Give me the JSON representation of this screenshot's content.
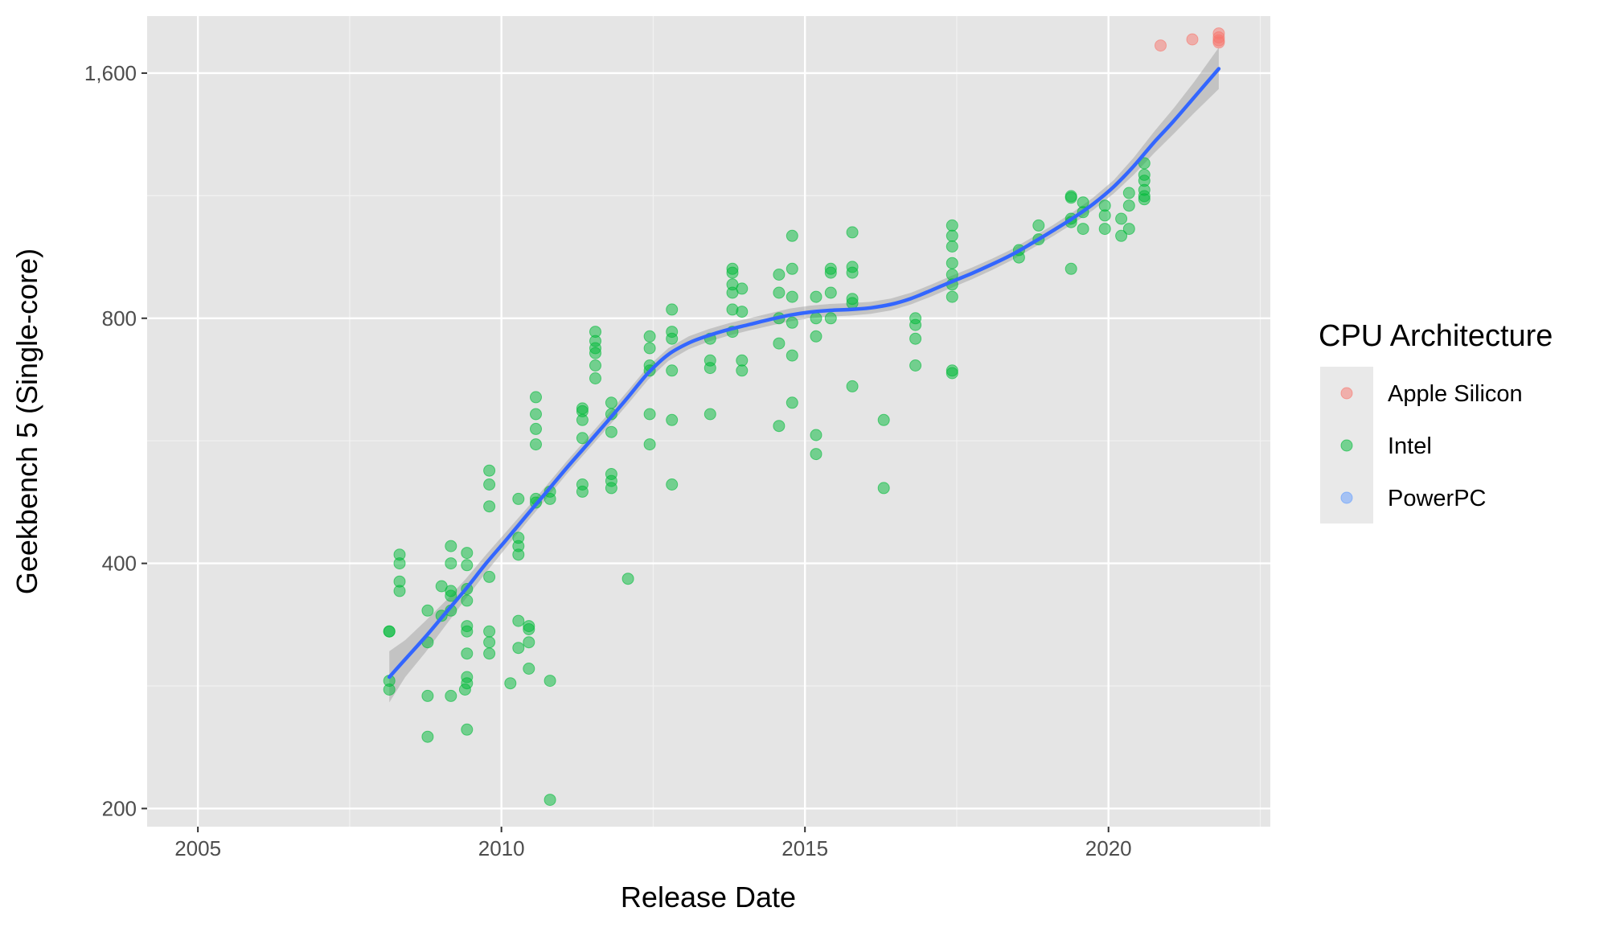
{
  "chart_data": {
    "type": "scatter",
    "title": "",
    "xlabel": "Release Date",
    "ylabel": "Geekbench 5 (Single-core)",
    "x_scale": "date",
    "y_scale": "log2",
    "xlim": [
      "2004-03-01",
      "2022-09-01"
    ],
    "ylim": [
      190,
      1880
    ],
    "x_ticks": [
      {
        "value": "2005-01-01",
        "label": "2005"
      },
      {
        "value": "2010-01-01",
        "label": "2010"
      },
      {
        "value": "2015-01-01",
        "label": "2015"
      },
      {
        "value": "2020-01-01",
        "label": "2020"
      }
    ],
    "y_ticks": [
      {
        "value": 200,
        "label": "200"
      },
      {
        "value": 400,
        "label": "400"
      },
      {
        "value": 800,
        "label": "800"
      },
      {
        "value": 1600,
        "label": "1,600"
      }
    ],
    "grid": true,
    "background": "#e5e5e5",
    "legend": {
      "title": "CPU Architecture",
      "position": "right",
      "entries": [
        {
          "name": "Apple Silicon",
          "color": "#f8766d"
        },
        {
          "name": "Intel",
          "color": "#00ba38"
        },
        {
          "name": "PowerPC",
          "color": "#619cff"
        }
      ]
    },
    "series": [
      {
        "name": "Apple Silicon",
        "color": "#f8766d",
        "points": [
          [
            "2020-11-10",
            1730
          ],
          [
            "2021-05-20",
            1760
          ],
          [
            "2021-10-26",
            1790
          ],
          [
            "2021-10-26",
            1770
          ],
          [
            "2021-10-26",
            1755
          ],
          [
            "2021-10-26",
            1745
          ]
        ]
      },
      {
        "name": "Intel",
        "color": "#00ba38",
        "points": [
          [
            "2008-02-26",
            330
          ],
          [
            "2008-02-26",
            330
          ],
          [
            "2008-02-26",
            287
          ],
          [
            "2008-02-26",
            280
          ],
          [
            "2008-04-28",
            410
          ],
          [
            "2008-04-28",
            400
          ],
          [
            "2008-04-28",
            380
          ],
          [
            "2008-04-28",
            370
          ],
          [
            "2008-10-14",
            350
          ],
          [
            "2008-10-14",
            320
          ],
          [
            "2008-10-14",
            275
          ],
          [
            "2008-10-14",
            245
          ],
          [
            "2009-01-06",
            375
          ],
          [
            "2009-01-06",
            345
          ],
          [
            "2009-03-03",
            420
          ],
          [
            "2009-03-03",
            400
          ],
          [
            "2009-03-03",
            370
          ],
          [
            "2009-03-03",
            365
          ],
          [
            "2009-03-03",
            350
          ],
          [
            "2009-03-03",
            275
          ],
          [
            "2009-05-27",
            280
          ],
          [
            "2009-06-08",
            412
          ],
          [
            "2009-06-08",
            398
          ],
          [
            "2009-06-08",
            372
          ],
          [
            "2009-06-08",
            360
          ],
          [
            "2009-06-08",
            335
          ],
          [
            "2009-06-08",
            330
          ],
          [
            "2009-06-08",
            310
          ],
          [
            "2009-06-08",
            290
          ],
          [
            "2009-06-08",
            285
          ],
          [
            "2009-06-08",
            250
          ],
          [
            "2009-10-20",
            520
          ],
          [
            "2009-10-20",
            500
          ],
          [
            "2009-10-20",
            470
          ],
          [
            "2009-10-20",
            385
          ],
          [
            "2009-10-20",
            330
          ],
          [
            "2009-10-20",
            320
          ],
          [
            "2009-10-20",
            310
          ],
          [
            "2010-02-24",
            285
          ],
          [
            "2010-04-13",
            480
          ],
          [
            "2010-04-13",
            430
          ],
          [
            "2010-04-13",
            420
          ],
          [
            "2010-04-13",
            410
          ],
          [
            "2010-04-13",
            340
          ],
          [
            "2010-04-13",
            315
          ],
          [
            "2010-06-15",
            335
          ],
          [
            "2010-06-15",
            332
          ],
          [
            "2010-06-15",
            320
          ],
          [
            "2010-06-15",
            297
          ],
          [
            "2010-07-27",
            640
          ],
          [
            "2010-07-27",
            610
          ],
          [
            "2010-07-27",
            585
          ],
          [
            "2010-07-27",
            560
          ],
          [
            "2010-07-27",
            480
          ],
          [
            "2010-07-27",
            475
          ],
          [
            "2010-10-20",
            490
          ],
          [
            "2010-10-20",
            480
          ],
          [
            "2010-10-20",
            287
          ],
          [
            "2010-10-20",
            205
          ],
          [
            "2011-05-03",
            620
          ],
          [
            "2011-05-03",
            615
          ],
          [
            "2011-05-03",
            600
          ],
          [
            "2011-05-03",
            570
          ],
          [
            "2011-05-03",
            500
          ],
          [
            "2011-05-03",
            490
          ],
          [
            "2011-07-20",
            770
          ],
          [
            "2011-07-20",
            750
          ],
          [
            "2011-07-20",
            735
          ],
          [
            "2011-07-20",
            725
          ],
          [
            "2011-07-20",
            700
          ],
          [
            "2011-07-20",
            675
          ],
          [
            "2011-10-24",
            630
          ],
          [
            "2011-10-24",
            610
          ],
          [
            "2011-10-24",
            580
          ],
          [
            "2011-10-24",
            515
          ],
          [
            "2011-10-24",
            505
          ],
          [
            "2011-10-24",
            495
          ],
          [
            "2012-02-01",
            383
          ],
          [
            "2012-06-11",
            760
          ],
          [
            "2012-06-11",
            735
          ],
          [
            "2012-06-11",
            700
          ],
          [
            "2012-06-11",
            690
          ],
          [
            "2012-06-11",
            610
          ],
          [
            "2012-06-11",
            560
          ],
          [
            "2012-10-23",
            820
          ],
          [
            "2012-10-23",
            770
          ],
          [
            "2012-10-23",
            755
          ],
          [
            "2012-10-23",
            690
          ],
          [
            "2012-10-23",
            600
          ],
          [
            "2012-10-23",
            500
          ],
          [
            "2013-06-10",
            755
          ],
          [
            "2013-06-10",
            710
          ],
          [
            "2013-06-10",
            695
          ],
          [
            "2013-06-10",
            610
          ],
          [
            "2013-10-22",
            920
          ],
          [
            "2013-10-22",
            910
          ],
          [
            "2013-10-22",
            880
          ],
          [
            "2013-10-22",
            860
          ],
          [
            "2013-10-22",
            820
          ],
          [
            "2013-10-22",
            770
          ],
          [
            "2013-12-18",
            870
          ],
          [
            "2013-12-18",
            815
          ],
          [
            "2013-12-18",
            710
          ],
          [
            "2013-12-18",
            690
          ],
          [
            "2014-07-29",
            905
          ],
          [
            "2014-07-29",
            860
          ],
          [
            "2014-07-29",
            800
          ],
          [
            "2014-07-29",
            745
          ],
          [
            "2014-07-29",
            590
          ],
          [
            "2014-10-16",
            1010
          ],
          [
            "2014-10-16",
            920
          ],
          [
            "2014-10-16",
            850
          ],
          [
            "2014-10-16",
            790
          ],
          [
            "2014-10-16",
            720
          ],
          [
            "2014-10-16",
            630
          ],
          [
            "2015-03-09",
            850
          ],
          [
            "2015-03-09",
            800
          ],
          [
            "2015-03-09",
            760
          ],
          [
            "2015-03-09",
            575
          ],
          [
            "2015-03-09",
            545
          ],
          [
            "2015-06-05",
            920
          ],
          [
            "2015-06-05",
            910
          ],
          [
            "2015-06-05",
            860
          ],
          [
            "2015-06-05",
            800
          ],
          [
            "2015-10-13",
            1020
          ],
          [
            "2015-10-13",
            925
          ],
          [
            "2015-10-13",
            910
          ],
          [
            "2015-10-13",
            845
          ],
          [
            "2015-10-13",
            835
          ],
          [
            "2015-10-13",
            660
          ],
          [
            "2016-04-19",
            600
          ],
          [
            "2016-04-19",
            495
          ],
          [
            "2016-10-27",
            800
          ],
          [
            "2016-10-27",
            785
          ],
          [
            "2016-10-27",
            755
          ],
          [
            "2016-10-27",
            700
          ],
          [
            "2017-06-05",
            1040
          ],
          [
            "2017-06-05",
            1010
          ],
          [
            "2017-06-05",
            980
          ],
          [
            "2017-06-05",
            935
          ],
          [
            "2017-06-05",
            905
          ],
          [
            "2017-06-05",
            880
          ],
          [
            "2017-06-05",
            850
          ],
          [
            "2017-06-05",
            690
          ],
          [
            "2017-06-05",
            685
          ],
          [
            "2018-07-12",
            970
          ],
          [
            "2018-07-12",
            950
          ],
          [
            "2018-11-07",
            1040
          ],
          [
            "2018-11-07",
            1000
          ],
          [
            "2019-05-21",
            1130
          ],
          [
            "2019-05-21",
            1125
          ],
          [
            "2019-05-21",
            1060
          ],
          [
            "2019-05-21",
            1050
          ],
          [
            "2019-05-21",
            920
          ],
          [
            "2019-08-01",
            1110
          ],
          [
            "2019-08-01",
            1080
          ],
          [
            "2019-08-01",
            1030
          ],
          [
            "2019-12-10",
            1100
          ],
          [
            "2019-12-10",
            1070
          ],
          [
            "2019-12-10",
            1030
          ],
          [
            "2020-03-18",
            1060
          ],
          [
            "2020-03-18",
            1010
          ],
          [
            "2020-05-04",
            1140
          ],
          [
            "2020-05-04",
            1100
          ],
          [
            "2020-05-04",
            1030
          ],
          [
            "2020-08-04",
            1240
          ],
          [
            "2020-08-04",
            1200
          ],
          [
            "2020-08-04",
            1180
          ],
          [
            "2020-08-04",
            1150
          ],
          [
            "2020-08-04",
            1130
          ],
          [
            "2020-08-04",
            1120
          ]
        ]
      },
      {
        "name": "PowerPC",
        "color": "#619cff",
        "points": []
      }
    ],
    "smooth_line": {
      "color": "#3366ff",
      "ribbon_color": "#999999",
      "points": [
        [
          "2008-02-26",
          290,
          270,
          312
        ],
        [
          "2008-06-01",
          305,
          290,
          322
        ],
        [
          "2008-10-01",
          325,
          311,
          340
        ],
        [
          "2009-02-01",
          348,
          336,
          360
        ],
        [
          "2009-06-01",
          372,
          362,
          383
        ],
        [
          "2009-10-01",
          400,
          390,
          410
        ],
        [
          "2010-02-01",
          428,
          419,
          438
        ],
        [
          "2010-06-01",
          458,
          449,
          467
        ],
        [
          "2010-10-01",
          490,
          481,
          499
        ],
        [
          "2011-02-01",
          525,
          516,
          535
        ],
        [
          "2011-06-01",
          560,
          550,
          570
        ],
        [
          "2011-10-01",
          598,
          587,
          609
        ],
        [
          "2012-02-01",
          640,
          628,
          652
        ],
        [
          "2012-06-01",
          685,
          672,
          698
        ],
        [
          "2012-10-01",
          722,
          709,
          735
        ],
        [
          "2013-02-01",
          746,
          733,
          760
        ],
        [
          "2013-06-01",
          762,
          749,
          776
        ],
        [
          "2013-10-01",
          775,
          762,
          789
        ],
        [
          "2014-02-01",
          786,
          773,
          800
        ],
        [
          "2014-06-01",
          797,
          783,
          811
        ],
        [
          "2014-10-01",
          807,
          793,
          822
        ],
        [
          "2015-02-01",
          814,
          800,
          829
        ],
        [
          "2015-06-01",
          818,
          804,
          833
        ],
        [
          "2015-10-01",
          820,
          806,
          835
        ],
        [
          "2016-02-01",
          824,
          810,
          838
        ],
        [
          "2016-06-01",
          832,
          818,
          846
        ],
        [
          "2016-10-01",
          846,
          832,
          860
        ],
        [
          "2017-02-01",
          866,
          851,
          880
        ],
        [
          "2017-06-01",
          887,
          872,
          902
        ],
        [
          "2017-10-01",
          908,
          893,
          923
        ],
        [
          "2018-02-01",
          932,
          917,
          947
        ],
        [
          "2018-06-01",
          958,
          943,
          973
        ],
        [
          "2018-10-01",
          990,
          975,
          1006
        ],
        [
          "2019-02-01",
          1025,
          1009,
          1041
        ],
        [
          "2019-06-01",
          1062,
          1045,
          1080
        ],
        [
          "2019-10-01",
          1105,
          1086,
          1125
        ],
        [
          "2020-02-01",
          1160,
          1138,
          1182
        ],
        [
          "2020-06-01",
          1230,
          1200,
          1260
        ],
        [
          "2020-10-01",
          1315,
          1275,
          1355
        ],
        [
          "2021-02-01",
          1400,
          1350,
          1452
        ],
        [
          "2021-06-01",
          1495,
          1430,
          1562
        ],
        [
          "2021-10-26",
          1620,
          1530,
          1720
        ]
      ]
    }
  }
}
